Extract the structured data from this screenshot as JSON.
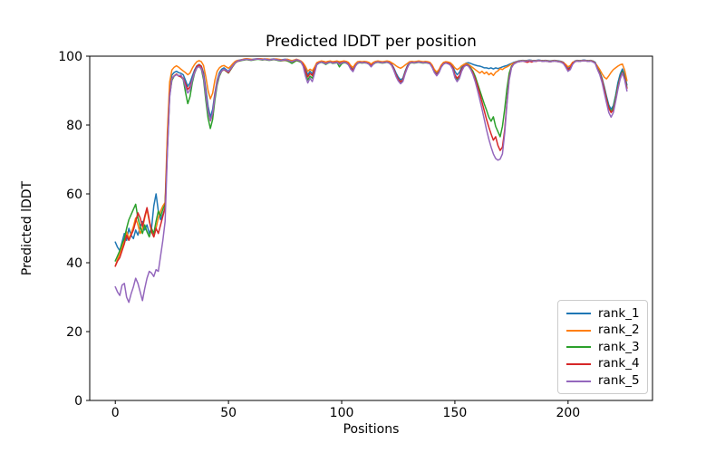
{
  "figure": {
    "background": "#ffffff",
    "text_color": "#000000",
    "spine_color": "#000000"
  },
  "chart_data": {
    "type": "line",
    "title": "Predicted lDDT per position",
    "xlabel": "Positions",
    "ylabel": "Predicted lDDT",
    "xlim": [
      -11.3,
      237.3
    ],
    "ylim": [
      0,
      100
    ],
    "xticks": [
      0,
      50,
      100,
      150,
      200
    ],
    "yticks": [
      0,
      20,
      40,
      60,
      80,
      100
    ],
    "grid": false,
    "legend_position": "lower right",
    "x_start": 0,
    "x_step": 1,
    "line_width": 1.5,
    "series": [
      {
        "name": "rank_1",
        "color": "#1f77b4",
        "values": [
          46,
          44.5,
          43.5,
          46,
          48.5,
          46.5,
          50,
          48,
          47,
          49.5,
          48,
          50.5,
          52,
          49.5,
          51,
          48.5,
          50,
          56.5,
          60,
          55,
          52.5,
          54,
          56,
          75,
          90,
          94.5,
          95.3,
          95.6,
          95.2,
          95,
          94.6,
          93,
          91.2,
          92.3,
          94.2,
          96,
          97.2,
          97.6,
          97.1,
          95.2,
          90.5,
          85.5,
          82.3,
          84.5,
          89.2,
          93,
          95.2,
          96.2,
          96.6,
          96.1,
          95.6,
          96.6,
          97.6,
          98.3,
          98.7,
          98.9,
          99,
          99.1,
          99.2,
          99.1,
          99,
          99.1,
          99.2,
          99.3,
          99.2,
          99.1,
          99.2,
          99.1,
          99,
          99.1,
          99.2,
          99.1,
          99,
          98.9,
          99,
          99.1,
          99,
          98.8,
          98.6,
          98.8,
          99,
          98.8,
          98.5,
          97.8,
          96.3,
          94.6,
          95.6,
          94.9,
          96.6,
          97.9,
          98.3,
          98.5,
          98.4,
          98.1,
          98.4,
          98.5,
          98.3,
          98.4,
          98.5,
          98.2,
          98.4,
          98.5,
          98.4,
          98,
          96.9,
          96.1,
          97.4,
          98.2,
          98.4,
          98.3,
          98.4,
          98.3,
          98,
          97.3,
          98,
          98.4,
          98.5,
          98.4,
          98.3,
          98.4,
          98.5,
          98.3,
          97.8,
          96.6,
          95.1,
          93.9,
          93.1,
          93.6,
          95.6,
          97.2,
          98.2,
          98.4,
          98.3,
          98.4,
          98.5,
          98.4,
          98.3,
          98.4,
          98.3,
          98.1,
          97.2,
          95.9,
          95.1,
          95.9,
          97.3,
          98.1,
          98.3,
          98.2,
          97.9,
          97.1,
          95.6,
          94.6,
          95.3,
          96.7,
          97.6,
          98,
          98.1,
          97.9,
          97.6,
          97.4,
          97.2,
          97.1,
          96.9,
          96.6,
          96.6,
          96.4,
          96.6,
          96.3,
          96.6,
          96.4,
          96.6,
          96.9,
          97.1,
          97.3,
          97.6,
          97.9,
          98.2,
          98.4,
          98.6,
          98.7,
          98.8,
          98.7,
          98.8,
          98.9,
          98.8,
          98.7,
          98.8,
          98.9,
          98.8,
          98.7,
          98.8,
          98.7,
          98.6,
          98.7,
          98.8,
          98.7,
          98.6,
          98.5,
          98.2,
          97.3,
          96.4,
          96.9,
          98,
          98.6,
          98.8,
          98.7,
          98.8,
          98.9,
          98.8,
          98.7,
          98.8,
          98.6,
          98.2,
          96.6,
          95.4,
          93.6,
          91.1,
          88.3,
          85.8,
          84.6,
          85.6,
          88.6,
          92.3,
          94.8,
          96.3,
          94.6,
          91.6
        ]
      },
      {
        "name": "rank_2",
        "color": "#ff7f0e",
        "values": [
          39,
          41,
          42.5,
          44.5,
          46.5,
          49,
          47,
          48.5,
          50.5,
          53,
          51,
          48.5,
          50,
          53,
          55.5,
          52,
          49.5,
          47.5,
          50,
          53,
          55,
          56.5,
          57.5,
          78,
          92.5,
          96,
          96.8,
          97.2,
          96.8,
          96.2,
          95.7,
          95.2,
          94.6,
          95.1,
          96.5,
          97.6,
          98.4,
          98.7,
          98.4,
          97.3,
          94,
          90,
          87.6,
          89.2,
          93,
          95.6,
          96.6,
          97.1,
          97.3,
          96.9,
          96.5,
          97.1,
          97.9,
          98.5,
          98.8,
          98.8,
          99,
          99.2,
          99.3,
          99.2,
          99.1,
          99,
          99.1,
          99.3,
          99.3,
          99.2,
          99.1,
          99.2,
          99.1,
          99,
          99.1,
          99.2,
          99.1,
          99,
          98.9,
          99,
          99.1,
          98.9,
          98.7,
          98.9,
          99.1,
          98.9,
          98.6,
          98,
          97,
          95.6,
          96.2,
          95.8,
          96.8,
          98.1,
          98.4,
          98.6,
          98.5,
          98.3,
          98.5,
          98.6,
          98.4,
          98.5,
          98.6,
          98.4,
          98.5,
          98.6,
          98.5,
          98.2,
          97.3,
          96.7,
          97.7,
          98.4,
          98.5,
          98.4,
          98.5,
          98.4,
          98.2,
          97.7,
          98.2,
          98.5,
          98.6,
          98.5,
          98.4,
          98.5,
          98.6,
          98.5,
          98.1,
          97.7,
          97.2,
          96.8,
          96.5,
          96.9,
          97.4,
          97.9,
          98.4,
          98.5,
          98.4,
          98.5,
          98.6,
          98.5,
          98.4,
          98.5,
          98.4,
          98.2,
          97.4,
          96.1,
          95.4,
          96.1,
          97.4,
          98.2,
          98.4,
          98.3,
          98.1,
          97.5,
          96.6,
          96.1,
          96.5,
          97.2,
          97.6,
          97.9,
          97.6,
          97.1,
          96.6,
          96.1,
          95.6,
          95.1,
          95.6,
          94.9,
          95.4,
          94.6,
          95.1,
          94.4,
          95.3,
          95.7,
          96.4,
          96.1,
          96.6,
          96.9,
          97.3,
          97.7,
          98,
          98.3,
          98.5,
          98.6,
          98.7,
          98.6,
          98.7,
          98.8,
          98.7,
          98.6,
          98.7,
          98.8,
          98.7,
          98.6,
          98.7,
          98.6,
          98.5,
          98.6,
          98.7,
          98.6,
          98.5,
          98.4,
          98.1,
          97.6,
          96.9,
          97.3,
          98.2,
          98.5,
          98.7,
          98.6,
          98.7,
          98.8,
          98.7,
          98.6,
          98.7,
          98.5,
          98,
          97.1,
          96.1,
          94.9,
          93.9,
          93.4,
          94.3,
          95.3,
          96.1,
          96.6,
          97.1,
          97.5,
          97.7,
          95.9,
          92.9
        ]
      },
      {
        "name": "rank_3",
        "color": "#2ca02c",
        "values": [
          40.5,
          42,
          43.5,
          45.5,
          47,
          50,
          52.5,
          54,
          55.5,
          57,
          53,
          50.5,
          48.5,
          51,
          49,
          47.5,
          50,
          48.5,
          52,
          55,
          53.5,
          55.5,
          57,
          73,
          88.5,
          93,
          94.2,
          94.8,
          94.3,
          94,
          93.2,
          89.5,
          86.2,
          88.3,
          92.3,
          95,
          96.6,
          97.1,
          96.2,
          93.2,
          87.2,
          82,
          79,
          81.6,
          87.2,
          91.6,
          94.2,
          95.6,
          96.1,
          95.6,
          95.1,
          96.1,
          97.1,
          98,
          98.5,
          98.6,
          98.8,
          98.9,
          99,
          98.9,
          98.8,
          98.9,
          99,
          99.1,
          99,
          98.9,
          99,
          98.9,
          98.8,
          98.9,
          99,
          98.9,
          98.7,
          98.6,
          98.7,
          98.8,
          98.6,
          98.3,
          97.9,
          98.3,
          98.7,
          98.5,
          98.2,
          97.2,
          94.8,
          93.1,
          94.2,
          93.6,
          95.5,
          97.5,
          98,
          98.2,
          98,
          97.6,
          98,
          98.2,
          97.9,
          98,
          98.1,
          96.9,
          97.8,
          98.1,
          98,
          97.5,
          96.4,
          95.7,
          97.1,
          97.9,
          98.1,
          98,
          98.1,
          98,
          97.7,
          97,
          97.7,
          98.1,
          98.2,
          98.1,
          98,
          98.1,
          98.2,
          98,
          97.4,
          96.1,
          94.4,
          93.2,
          92.4,
          93,
          95.1,
          96.8,
          97.9,
          98.1,
          98,
          98.1,
          98.2,
          98.1,
          98,
          98.1,
          98,
          97.8,
          96.8,
          95.3,
          94.6,
          95.4,
          96.9,
          97.7,
          98,
          97.9,
          97.5,
          96.5,
          94.3,
          93.2,
          94,
          95.9,
          97,
          97.5,
          97.3,
          96.6,
          95.6,
          94.1,
          92.1,
          90.1,
          88.1,
          86.1,
          84.3,
          82.3,
          81.1,
          82.4,
          79.6,
          78.1,
          76.6,
          79.6,
          84.6,
          90.6,
          95.1,
          97.1,
          97.7,
          98.1,
          98.4,
          98.5,
          98.6,
          98.5,
          98.6,
          98.7,
          98.6,
          98.5,
          98.6,
          98.7,
          98.6,
          98.5,
          98.6,
          98.5,
          98.4,
          98.5,
          98.6,
          98.5,
          98.4,
          98.2,
          97.9,
          97,
          95.9,
          96.4,
          97.8,
          98.4,
          98.6,
          98.5,
          98.6,
          98.7,
          98.6,
          98.5,
          98.6,
          98.4,
          98,
          96.4,
          95.1,
          93.2,
          90.6,
          87.7,
          85.1,
          83.9,
          85,
          88.1,
          91.3,
          93.9,
          95.6,
          93.9,
          90.9
        ]
      },
      {
        "name": "rank_4",
        "color": "#d62728",
        "values": [
          39,
          40.5,
          41.5,
          43.5,
          45.5,
          48,
          46.5,
          48,
          49.5,
          52,
          54.5,
          53,
          50.5,
          53.5,
          56,
          52.5,
          49,
          47.5,
          50,
          48.5,
          51,
          53.5,
          56,
          73.5,
          89,
          93.5,
          94.3,
          94.8,
          94.2,
          94,
          93.6,
          92,
          90.3,
          91.2,
          93.2,
          95.5,
          97,
          97.5,
          97,
          94.3,
          89,
          84.2,
          81.2,
          83.2,
          88.6,
          92.6,
          94.6,
          95.7,
          96.1,
          95.7,
          95.2,
          96.2,
          97.2,
          98.1,
          98.5,
          98.7,
          98.9,
          99,
          99.1,
          99,
          98.9,
          99,
          99.1,
          99.2,
          99.1,
          99,
          99.1,
          99,
          98.9,
          99,
          99.1,
          99,
          98.9,
          98.8,
          98.8,
          98.9,
          98.8,
          98.6,
          98.4,
          98.6,
          98.9,
          98.7,
          98.4,
          97.5,
          95.6,
          94,
          95,
          94.4,
          96,
          97.7,
          98.1,
          98.3,
          98.2,
          97.9,
          98.2,
          98.3,
          98.1,
          98.2,
          98.3,
          97.8,
          98.1,
          98.3,
          98.2,
          97.7,
          96.6,
          95.9,
          97.2,
          98,
          98.2,
          98.1,
          98.2,
          98.1,
          97.8,
          97.2,
          97.8,
          98.2,
          98.3,
          98.2,
          98.1,
          98.2,
          98.3,
          98.1,
          97.6,
          96.3,
          94.6,
          93.3,
          92.6,
          93.1,
          95.2,
          96.9,
          98,
          98.2,
          98.1,
          98.2,
          98.3,
          98.2,
          98.1,
          98.2,
          98.1,
          97.9,
          96.9,
          95.4,
          94.6,
          95.4,
          97,
          97.8,
          98.1,
          98,
          97.6,
          96.7,
          94.6,
          93.6,
          94.3,
          96.1,
          97.1,
          97.5,
          97.2,
          96.3,
          95.1,
          93.4,
          91.4,
          89.1,
          86.6,
          84.1,
          81.6,
          79.4,
          77.4,
          75.6,
          76.6,
          74.1,
          72.6,
          73.6,
          78.6,
          86.6,
          93.6,
          96.8,
          97.8,
          98.2,
          98.4,
          98.5,
          98.6,
          98.4,
          98.2,
          98.5,
          98.3,
          98.6,
          98.5,
          98.7,
          98.6,
          98.5,
          98.6,
          98.5,
          98.4,
          98.5,
          98.6,
          98.5,
          98.4,
          98.3,
          98,
          97.1,
          96.1,
          96.6,
          97.9,
          98.4,
          98.6,
          98.5,
          98.6,
          98.7,
          98.6,
          98.5,
          98.6,
          98.4,
          98,
          96.3,
          94.9,
          93.1,
          90.4,
          87.4,
          84.9,
          83.6,
          84.4,
          87.3,
          90.8,
          93.6,
          95.3,
          93.6,
          90.6
        ]
      },
      {
        "name": "rank_5",
        "color": "#9467bd",
        "values": [
          33,
          31.5,
          30.5,
          33.5,
          34,
          30,
          28.5,
          31,
          33,
          35.5,
          34,
          31.5,
          29,
          32.5,
          35.5,
          37.5,
          37,
          36,
          38,
          37.5,
          42,
          46.5,
          52,
          72,
          88,
          93.5,
          94.2,
          94.6,
          94.3,
          94.5,
          93.3,
          91,
          89.3,
          90.2,
          93,
          95.2,
          96.6,
          97,
          96.4,
          94,
          88.6,
          84,
          81.3,
          83.4,
          88.2,
          92.2,
          94.6,
          95.7,
          96.2,
          95.9,
          95.5,
          96.4,
          97.3,
          98.1,
          98.6,
          98.8,
          98.9,
          99,
          99.1,
          99,
          98.9,
          99,
          99.1,
          99.2,
          99.1,
          99,
          99.1,
          99,
          98.9,
          99,
          99.1,
          99,
          98.9,
          98.8,
          98.9,
          99,
          98.9,
          98.6,
          98.4,
          98.7,
          99,
          98.8,
          98.4,
          97,
          94.2,
          92.2,
          93.6,
          92.6,
          95,
          97.6,
          98,
          98.3,
          98.1,
          97.8,
          98.1,
          98.3,
          98,
          98.1,
          98.2,
          97.6,
          98,
          98.2,
          98.1,
          97.5,
          96.2,
          95.5,
          97,
          98,
          98.2,
          98.1,
          98.2,
          98,
          97.7,
          96.9,
          97.7,
          98.2,
          98.3,
          98.2,
          98.1,
          98.2,
          98.3,
          98,
          97.4,
          95.9,
          94.1,
          92.8,
          92,
          92.6,
          94.8,
          96.6,
          98,
          98.2,
          98.1,
          98.2,
          98.3,
          98.2,
          98.1,
          98.2,
          98,
          97.8,
          96.7,
          95.2,
          94.3,
          95.2,
          96.8,
          97.7,
          98,
          97.8,
          97.4,
          96.3,
          93.8,
          92.6,
          93.5,
          95.6,
          96.9,
          97.4,
          97.1,
          96.1,
          94.6,
          92.6,
          90.1,
          87.4,
          84.6,
          81.6,
          78.6,
          75.9,
          73.6,
          71.6,
          70.3,
          69.8,
          70.1,
          71.6,
          77.6,
          86.1,
          93.1,
          96.6,
          97.7,
          98.1,
          98.4,
          98.5,
          98.6,
          98.5,
          98.6,
          98.7,
          98.6,
          98.5,
          98.6,
          98.7,
          98.6,
          98.5,
          98.6,
          98.5,
          98.4,
          98.5,
          98.6,
          98.5,
          98.4,
          98.2,
          97.8,
          96.8,
          95.6,
          96.1,
          97.6,
          98.4,
          98.6,
          98.5,
          98.6,
          98.7,
          98.6,
          98.5,
          98.6,
          98.3,
          97.9,
          96.1,
          94.6,
          92.4,
          89.4,
          86.4,
          83.6,
          82.3,
          83.6,
          86.9,
          90.3,
          93.3,
          95.1,
          93.1,
          89.9
        ]
      }
    ]
  }
}
